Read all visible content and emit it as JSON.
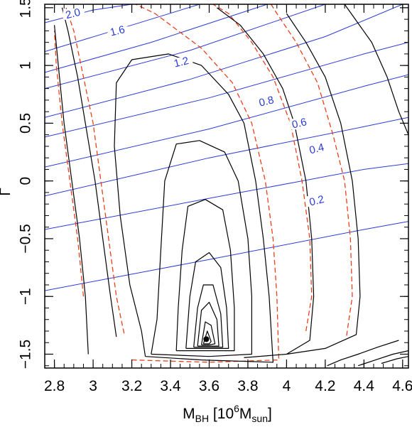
{
  "chart_data": {
    "type": "contour",
    "xlabel": {
      "base": "M",
      "sub1": "BH",
      "mid": " [10",
      "sup": "6",
      "base2": "M",
      "sub2": "sun",
      "end": "]"
    },
    "ylabel": "Γ",
    "xlim": [
      2.75,
      4.63
    ],
    "ylim": [
      -1.62,
      1.53
    ],
    "xticks": [
      2.8,
      3.0,
      3.2,
      3.4,
      3.6,
      3.8,
      4.0,
      4.2,
      4.4,
      4.6
    ],
    "xtick_labels": [
      "2.8",
      "3",
      "3.2",
      "3.4",
      "3.6",
      "3.8",
      "4",
      "4.2",
      "4.4",
      "4.6"
    ],
    "yticks": [
      -1.5,
      -1.0,
      -0.5,
      0.0,
      0.5,
      1.0,
      1.5
    ],
    "ytick_labels": [
      "−1.5",
      "−1",
      "−0.5",
      "0",
      "0.5",
      "1",
      "1.5"
    ],
    "best_fit": {
      "x": 3.585,
      "y": -1.37
    },
    "colors": {
      "confidence": "#000000",
      "marginal": "#e8401c",
      "auxiliary": "#2b3bd6"
    },
    "confidence_contours": [
      [
        [
          2.975,
          -1.5
        ],
        [
          2.96,
          -1.0
        ],
        [
          2.93,
          -0.5
        ],
        [
          2.89,
          0.0
        ],
        [
          2.85,
          0.5
        ],
        [
          2.82,
          1.0
        ],
        [
          2.8,
          1.35
        ]
      ],
      [
        [
          3.12,
          -1.35
        ],
        [
          3.09,
          -1.0
        ],
        [
          3.05,
          -0.5
        ],
        [
          3.01,
          0.0
        ],
        [
          2.97,
          0.4
        ],
        [
          2.92,
          0.9
        ],
        [
          2.87,
          1.3
        ],
        [
          2.84,
          1.5
        ]
      ],
      [
        [
          3.27,
          -1.52
        ],
        [
          3.56,
          -1.55
        ],
        [
          3.93,
          -1.57
        ],
        [
          3.91,
          -1.0
        ],
        [
          3.88,
          -0.5
        ],
        [
          3.84,
          0.0
        ],
        [
          3.78,
          0.5
        ],
        [
          3.7,
          0.75
        ],
        [
          3.56,
          1.0
        ],
        [
          3.39,
          1.1
        ],
        [
          3.2,
          1.05
        ],
        [
          3.12,
          0.85
        ],
        [
          3.11,
          0.3
        ],
        [
          3.14,
          -0.3
        ],
        [
          3.19,
          -0.9
        ],
        [
          3.25,
          -1.3
        ],
        [
          3.27,
          -1.52
        ]
      ],
      [
        [
          3.3,
          -1.5
        ],
        [
          3.6,
          -1.52
        ],
        [
          3.82,
          -1.5
        ],
        [
          3.82,
          -1.0
        ],
        [
          3.8,
          -0.5
        ],
        [
          3.75,
          0.0
        ],
        [
          3.68,
          0.25
        ],
        [
          3.55,
          0.35
        ],
        [
          3.43,
          0.32
        ],
        [
          3.37,
          0.0
        ],
        [
          3.35,
          -0.6
        ],
        [
          3.33,
          -1.2
        ],
        [
          3.3,
          -1.5
        ]
      ],
      [
        [
          3.43,
          -1.47
        ],
        [
          3.6,
          -1.47
        ],
        [
          3.73,
          -1.47
        ],
        [
          3.73,
          -1.1
        ],
        [
          3.71,
          -0.6
        ],
        [
          3.67,
          -0.25
        ],
        [
          3.58,
          -0.16
        ],
        [
          3.49,
          -0.22
        ],
        [
          3.46,
          -0.6
        ],
        [
          3.44,
          -1.1
        ],
        [
          3.43,
          -1.47
        ]
      ],
      [
        [
          3.48,
          -1.45
        ],
        [
          3.59,
          -1.45
        ],
        [
          3.7,
          -1.45
        ],
        [
          3.69,
          -1.1
        ],
        [
          3.66,
          -0.75
        ],
        [
          3.6,
          -0.62
        ],
        [
          3.53,
          -0.7
        ],
        [
          3.5,
          -1.0
        ],
        [
          3.48,
          -1.45
        ]
      ],
      [
        [
          3.52,
          -1.44
        ],
        [
          3.6,
          -1.44
        ],
        [
          3.67,
          -1.44
        ],
        [
          3.66,
          -1.15
        ],
        [
          3.62,
          -0.9
        ],
        [
          3.57,
          -0.9
        ],
        [
          3.54,
          -1.1
        ],
        [
          3.52,
          -1.44
        ]
      ],
      [
        [
          3.54,
          -1.43
        ],
        [
          3.6,
          -1.43
        ],
        [
          3.65,
          -1.43
        ],
        [
          3.64,
          -1.2
        ],
        [
          3.6,
          -1.05
        ],
        [
          3.56,
          -1.12
        ],
        [
          3.54,
          -1.43
        ]
      ],
      [
        [
          3.56,
          -1.42
        ],
        [
          3.6,
          -1.42
        ],
        [
          3.63,
          -1.41
        ],
        [
          3.61,
          -1.25
        ],
        [
          3.58,
          -1.22
        ],
        [
          3.56,
          -1.42
        ]
      ],
      [
        [
          3.57,
          -1.41
        ],
        [
          3.6,
          -1.41
        ],
        [
          3.61,
          -1.39
        ],
        [
          3.59,
          -1.3
        ],
        [
          3.57,
          -1.41
        ]
      ],
      [
        [
          3.78,
          -1.53
        ],
        [
          4.0,
          -1.5
        ],
        [
          4.12,
          -1.38
        ],
        [
          4.14,
          -1.0
        ],
        [
          4.13,
          -0.5
        ],
        [
          4.1,
          0.0
        ],
        [
          4.04,
          0.5
        ],
        [
          3.98,
          0.8
        ],
        [
          3.88,
          1.1
        ],
        [
          3.76,
          1.35
        ],
        [
          3.64,
          1.5
        ]
      ],
      [
        [
          4.0,
          -1.5
        ],
        [
          4.2,
          -1.45
        ],
        [
          4.36,
          -1.33
        ],
        [
          4.38,
          -1.0
        ],
        [
          4.37,
          -0.5
        ],
        [
          4.34,
          0.0
        ],
        [
          4.28,
          0.5
        ],
        [
          4.2,
          0.9
        ],
        [
          4.1,
          1.2
        ],
        [
          4.0,
          1.45
        ]
      ],
      [
        [
          4.21,
          -1.6
        ],
        [
          4.28,
          -1.55
        ],
        [
          4.37,
          -1.5
        ],
        [
          4.47,
          -1.44
        ],
        [
          4.58,
          -1.38
        ]
      ],
      [
        [
          4.37,
          -1.6
        ],
        [
          4.46,
          -1.55
        ],
        [
          4.55,
          -1.5
        ],
        [
          4.63,
          -1.47
        ]
      ],
      [
        [
          4.49,
          -1.58
        ],
        [
          4.57,
          -1.54
        ],
        [
          4.63,
          -1.52
        ]
      ],
      [
        [
          4.3,
          1.53
        ],
        [
          4.44,
          1.2
        ],
        [
          4.52,
          0.9
        ],
        [
          4.58,
          0.6
        ],
        [
          4.63,
          0.4
        ]
      ]
    ],
    "marginal_contours": [
      [
        [
          2.95,
          -1.0
        ],
        [
          2.92,
          -0.5
        ],
        [
          2.88,
          0.0
        ],
        [
          2.84,
          0.5
        ],
        [
          2.81,
          1.0
        ],
        [
          2.8,
          1.3
        ]
      ],
      [
        [
          3.16,
          -1.32
        ],
        [
          3.12,
          -1.0
        ],
        [
          3.08,
          -0.5
        ],
        [
          3.04,
          0.0
        ],
        [
          3.0,
          0.5
        ],
        [
          2.95,
          0.9
        ],
        [
          2.9,
          1.3
        ],
        [
          2.86,
          1.5
        ]
      ],
      [
        [
          3.2,
          -1.55
        ],
        [
          3.6,
          -1.57
        ],
        [
          3.96,
          -1.55
        ],
        [
          3.95,
          -1.0
        ],
        [
          3.93,
          -0.5
        ],
        [
          3.89,
          0.0
        ],
        [
          3.82,
          0.5
        ],
        [
          3.72,
          0.85
        ],
        [
          3.56,
          1.15
        ],
        [
          3.44,
          1.3
        ],
        [
          3.32,
          1.45
        ],
        [
          3.22,
          1.53
        ]
      ],
      [
        [
          4.1,
          -1.3
        ],
        [
          4.13,
          -1.0
        ],
        [
          4.12,
          -0.5
        ],
        [
          4.08,
          0.0
        ],
        [
          4.02,
          0.5
        ],
        [
          3.93,
          0.9
        ],
        [
          3.82,
          1.2
        ],
        [
          3.7,
          1.45
        ],
        [
          3.62,
          1.53
        ]
      ],
      [
        [
          4.31,
          -1.34
        ],
        [
          4.34,
          -1.0
        ],
        [
          4.33,
          -0.5
        ],
        [
          4.3,
          0.0
        ],
        [
          4.24,
          0.4
        ],
        [
          4.16,
          0.85
        ],
        [
          4.05,
          1.2
        ],
        [
          3.95,
          1.45
        ],
        [
          3.92,
          1.53
        ]
      ]
    ],
    "auxiliary_contours": [
      {
        "label": "2.0",
        "label_at": [
          2.9,
          1.42
        ],
        "points": [
          [
            2.75,
            1.37
          ],
          [
            3.0,
            1.48
          ],
          [
            3.2,
            1.53
          ]
        ]
      },
      {
        "label": "",
        "label_at": null,
        "points": [
          [
            2.75,
            1.12
          ],
          [
            3.2,
            1.35
          ],
          [
            3.55,
            1.53
          ]
        ]
      },
      {
        "label": "1.6",
        "label_at": [
          3.13,
          1.27
        ],
        "points": [
          [
            2.75,
            0.94
          ],
          [
            3.3,
            1.2
          ],
          [
            3.9,
            1.53
          ]
        ]
      },
      {
        "label": "",
        "label_at": null,
        "points": [
          [
            2.75,
            0.8
          ],
          [
            3.5,
            1.13
          ],
          [
            4.2,
            1.53
          ]
        ]
      },
      {
        "label": "1.2",
        "label_at": [
          3.46,
          1.0
        ],
        "points": [
          [
            2.75,
            0.55
          ],
          [
            3.5,
            0.88
          ],
          [
            4.2,
            1.25
          ],
          [
            4.6,
            1.53
          ]
        ]
      },
      {
        "label": "",
        "label_at": null,
        "points": [
          [
            2.75,
            0.38
          ],
          [
            3.6,
            0.72
          ],
          [
            4.4,
            1.1
          ],
          [
            4.63,
            1.2
          ]
        ]
      },
      {
        "label": "0.8",
        "label_at": [
          3.9,
          0.66
        ],
        "points": [
          [
            2.75,
            0.12
          ],
          [
            3.6,
            0.45
          ],
          [
            4.4,
            0.82
          ],
          [
            4.63,
            0.92
          ]
        ]
      },
      {
        "label": "0.6",
        "label_at": [
          4.07,
          0.47
        ],
        "points": [
          [
            2.75,
            -0.13
          ],
          [
            3.6,
            0.2
          ],
          [
            4.4,
            0.47
          ],
          [
            4.63,
            0.55
          ]
        ]
      },
      {
        "label": "0.4",
        "label_at": [
          4.16,
          0.25
        ],
        "points": [
          [
            2.75,
            -0.42
          ],
          [
            3.6,
            -0.15
          ],
          [
            4.4,
            0.1
          ],
          [
            4.63,
            0.15
          ]
        ]
      },
      {
        "label": "0.2",
        "label_at": [
          4.16,
          -0.2
        ],
        "points": [
          [
            2.75,
            -0.95
          ],
          [
            3.6,
            -0.68
          ],
          [
            4.4,
            -0.42
          ],
          [
            4.63,
            -0.35
          ]
        ]
      }
    ]
  }
}
